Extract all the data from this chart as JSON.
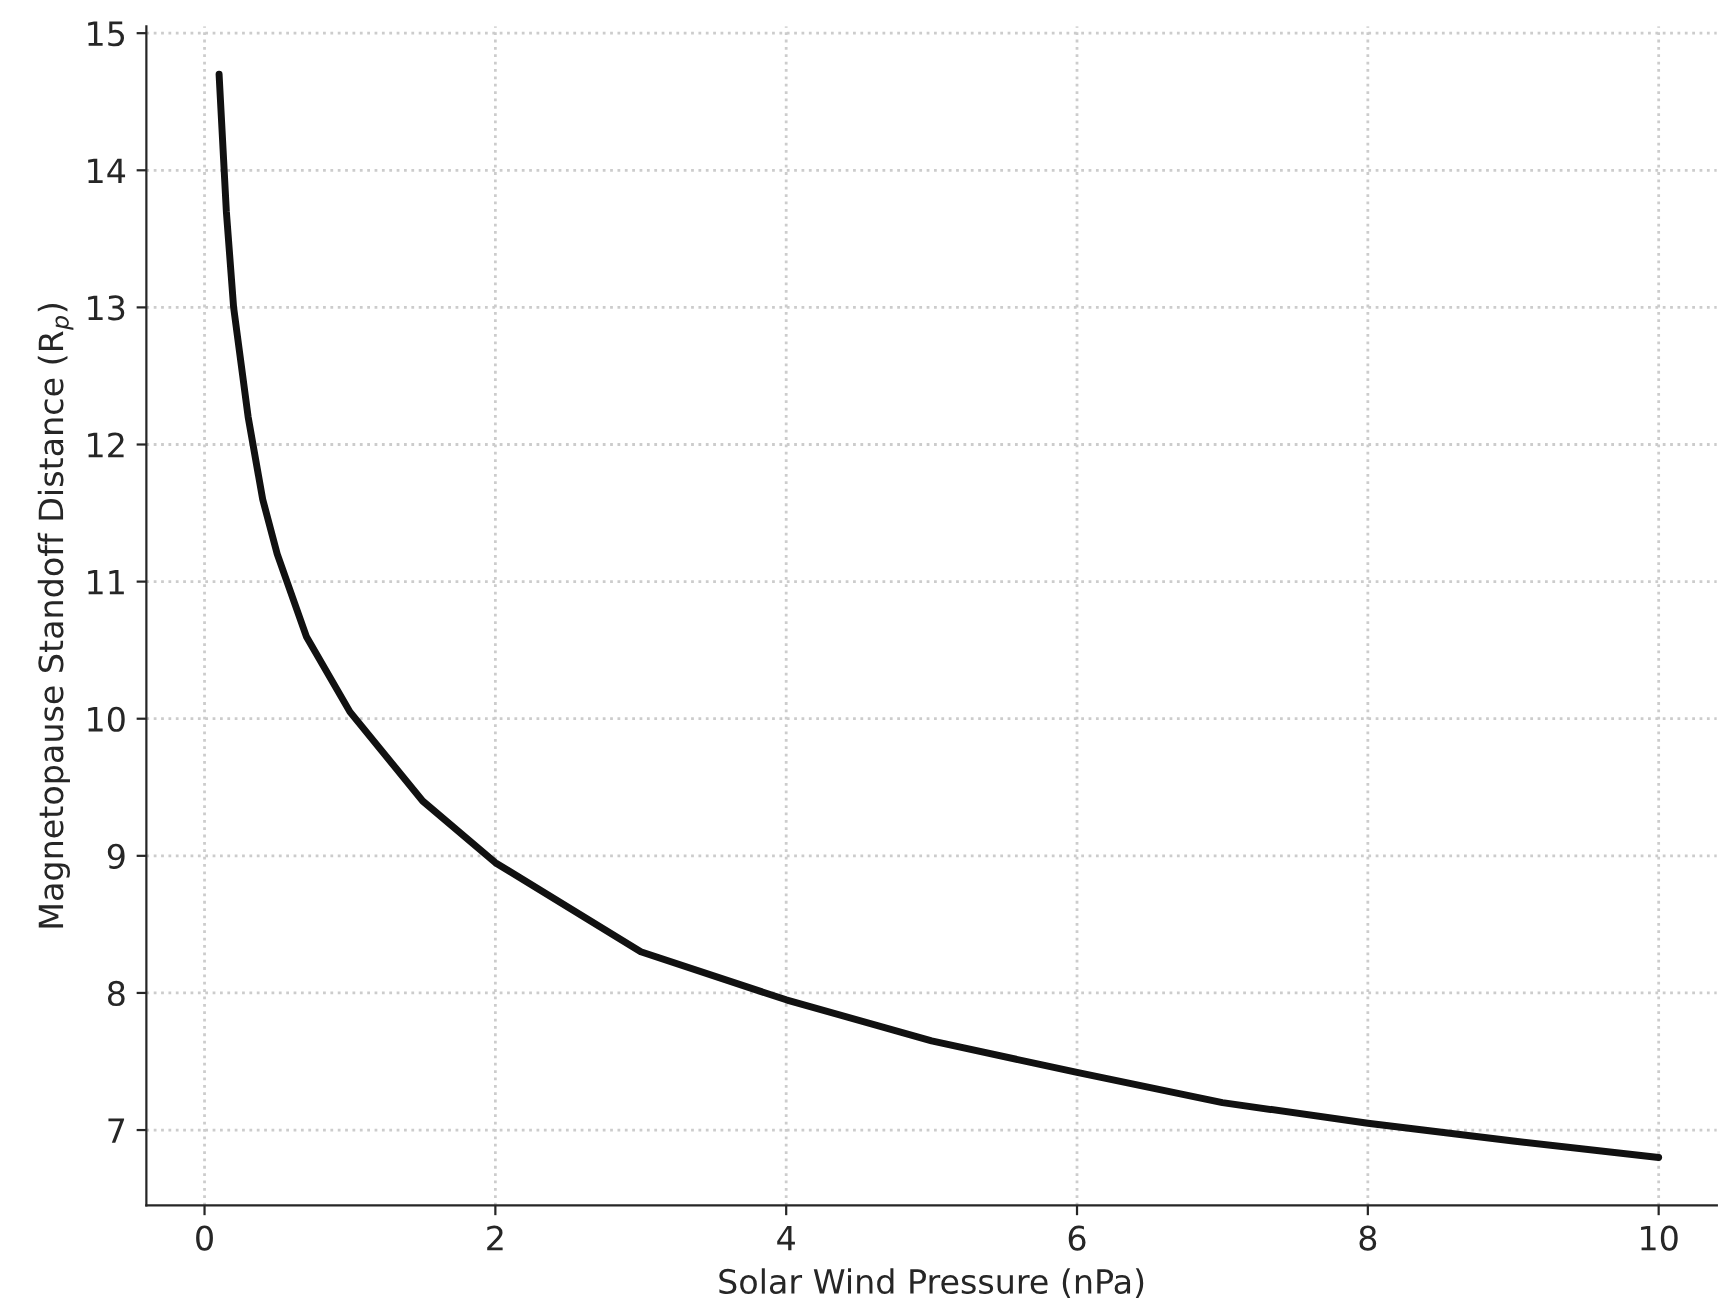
{
  "chart_data": {
    "type": "line",
    "xlabel": "Solar Wind Pressure (nPa)",
    "ylabel": "Magnetopause Standoff Distance (R$_{p}$)",
    "series": [
      {
        "color": "#111111",
        "x": [
          0.1,
          0.15,
          0.2,
          0.3,
          0.4,
          0.5,
          0.7,
          1,
          1.5,
          2,
          3,
          4,
          5,
          6,
          7,
          8,
          9,
          10
        ],
        "values": [
          14.7,
          13.7,
          13.0,
          12.2,
          11.6,
          11.2,
          10.6,
          10.05,
          9.4,
          8.95,
          8.3,
          7.95,
          7.65,
          7.42,
          7.2,
          7.05,
          6.92,
          6.8
        ]
      }
    ],
    "xlim": [
      -0.4,
      10.4
    ],
    "ylim": [
      6.45,
      15.05
    ],
    "xticks": [
      0,
      2,
      4,
      6,
      8,
      10
    ],
    "yticks": [
      7,
      8,
      9,
      10,
      11,
      12,
      13,
      14,
      15
    ],
    "grid": true,
    "legend": false,
    "marker": "none",
    "line_style": "solid"
  }
}
